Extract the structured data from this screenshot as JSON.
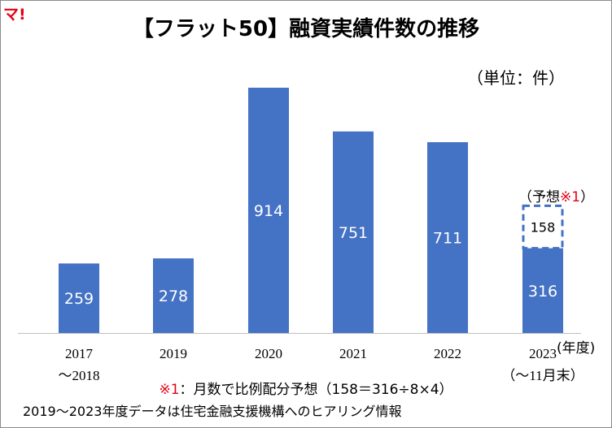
{
  "logo": {
    "text": "マ!"
  },
  "chart_data": {
    "type": "bar",
    "title": "【フラット50】融資実績件数の推移",
    "unit_label": "（単位：件）",
    "categories": [
      "2017",
      "2019",
      "2020",
      "2021",
      "2022",
      "2023"
    ],
    "category_sublabels": [
      "～2018",
      "",
      "",
      "",
      "",
      "（～11月末）"
    ],
    "values": [
      259,
      278,
      914,
      751,
      711,
      316
    ],
    "forecast": {
      "category": "2023",
      "value": 158,
      "label": "（予想",
      "mark": "※1",
      "label_end": "）"
    },
    "bar_color": "#4472c4",
    "xaxis_unit": "(年度)",
    "ylim": [
      0,
      1000
    ],
    "grid": false
  },
  "footnote": {
    "mark": "※1",
    "text": "：月数で比例配分予想（158＝316÷8×4）"
  },
  "source": "2019～2023年度データは住宅金融支援機構へのヒアリング情報"
}
